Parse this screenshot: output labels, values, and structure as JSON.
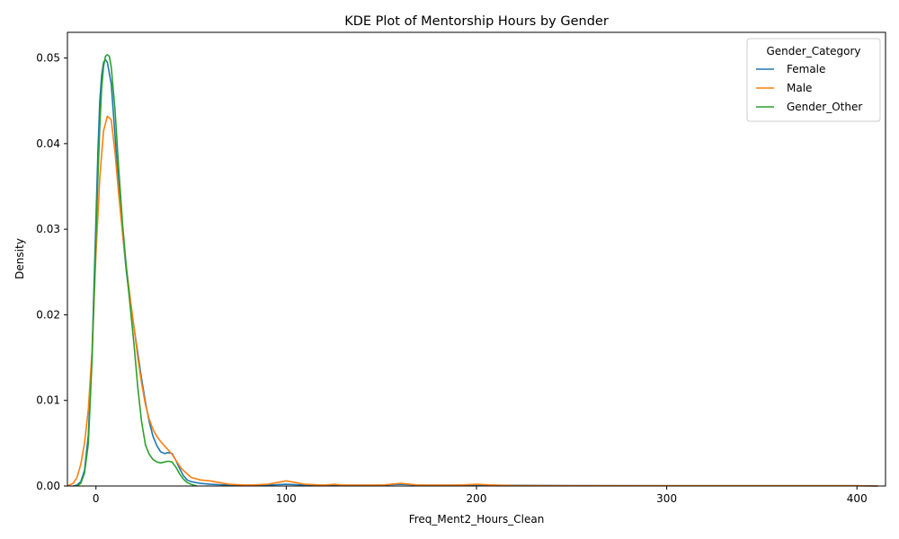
{
  "chart_data": {
    "type": "line",
    "title": "KDE Plot of Mentorship Hours by Gender",
    "xlabel": "Freq_Ment2_Hours_Clean",
    "ylabel": "Density",
    "xlim": [
      -15,
      415
    ],
    "ylim": [
      0,
      0.053
    ],
    "xticks": [
      0,
      100,
      200,
      300,
      400
    ],
    "yticks": [
      0.0,
      0.01,
      0.02,
      0.03,
      0.04,
      0.05
    ],
    "xtick_labels": [
      "0",
      "100",
      "200",
      "300",
      "400"
    ],
    "ytick_labels": [
      "0.00",
      "0.01",
      "0.02",
      "0.03",
      "0.04",
      "0.05"
    ],
    "grid": false,
    "legend": {
      "title": "Gender_Category",
      "placement": "top-right"
    },
    "series": [
      {
        "name": "Female",
        "color": "#1f77b4",
        "x": [
          -12,
          -10,
          -8,
          -6,
          -4,
          -2,
          0,
          1,
          2,
          3,
          4,
          5,
          6,
          8,
          10,
          12,
          14,
          16,
          18,
          20,
          22,
          24,
          26,
          28,
          30,
          32,
          34,
          36,
          38,
          40,
          42,
          44,
          46,
          48,
          50,
          55,
          60,
          70,
          80,
          90,
          100,
          110,
          120,
          130,
          150,
          160,
          170,
          200,
          250,
          300,
          350,
          400,
          411
        ],
        "y": [
          0.0,
          0.0001,
          0.0005,
          0.0018,
          0.006,
          0.016,
          0.031,
          0.039,
          0.045,
          0.048,
          0.0495,
          0.0498,
          0.0495,
          0.047,
          0.041,
          0.035,
          0.0295,
          0.025,
          0.0215,
          0.0185,
          0.0155,
          0.0125,
          0.0098,
          0.0075,
          0.0058,
          0.0047,
          0.004,
          0.0038,
          0.0039,
          0.0038,
          0.003,
          0.002,
          0.0012,
          0.0007,
          0.0005,
          0.0003,
          0.0002,
          0.0001,
          0.0001,
          0.0001,
          0.0002,
          0.0001,
          0.0001,
          0.0001,
          0.0001,
          0.0002,
          0.0001,
          0.0001,
          5e-05,
          3e-05,
          3e-05,
          3e-05,
          0.0
        ]
      },
      {
        "name": "Male",
        "color": "#ff7f0e",
        "x": [
          -15,
          -12,
          -10,
          -8,
          -6,
          -4,
          -2,
          0,
          2,
          4,
          6,
          8,
          10,
          12,
          14,
          16,
          18,
          20,
          22,
          24,
          26,
          28,
          30,
          32,
          34,
          36,
          38,
          40,
          42,
          45,
          50,
          55,
          60,
          65,
          70,
          80,
          90,
          95,
          100,
          105,
          110,
          120,
          125,
          130,
          150,
          160,
          170,
          190,
          200,
          210,
          220,
          250,
          300,
          350,
          400,
          411
        ],
        "y": [
          0.0,
          0.0003,
          0.001,
          0.0025,
          0.005,
          0.009,
          0.016,
          0.027,
          0.036,
          0.0415,
          0.0432,
          0.0428,
          0.039,
          0.034,
          0.0295,
          0.0255,
          0.022,
          0.0185,
          0.015,
          0.012,
          0.0095,
          0.0078,
          0.0066,
          0.0058,
          0.0052,
          0.0047,
          0.0042,
          0.0037,
          0.003,
          0.002,
          0.001,
          0.0007,
          0.0006,
          0.0004,
          0.0002,
          0.0001,
          0.0002,
          0.0004,
          0.0006,
          0.0004,
          0.0002,
          0.0001,
          0.0002,
          0.0001,
          0.0001,
          0.0003,
          0.0001,
          0.0001,
          0.0002,
          0.0001,
          5e-05,
          3e-05,
          3e-05,
          3e-05,
          3e-05,
          0.0
        ]
      },
      {
        "name": "Gender_Other",
        "color": "#2ca02c",
        "x": [
          -10,
          -8,
          -6,
          -4,
          -2,
          0,
          1,
          2,
          3,
          4,
          5,
          6,
          7,
          8,
          10,
          12,
          14,
          16,
          18,
          20,
          22,
          24,
          26,
          28,
          30,
          32,
          34,
          36,
          38,
          40,
          42,
          44,
          46,
          48,
          50,
          53
        ],
        "y": [
          0.0,
          0.0003,
          0.0015,
          0.005,
          0.015,
          0.029,
          0.036,
          0.042,
          0.0465,
          0.049,
          0.0502,
          0.0504,
          0.0502,
          0.049,
          0.044,
          0.037,
          0.0305,
          0.0255,
          0.021,
          0.0165,
          0.0115,
          0.0075,
          0.0048,
          0.0037,
          0.0031,
          0.0028,
          0.0027,
          0.0028,
          0.0029,
          0.0028,
          0.0022,
          0.0014,
          0.0008,
          0.0004,
          0.0002,
          0.0
        ]
      }
    ]
  }
}
